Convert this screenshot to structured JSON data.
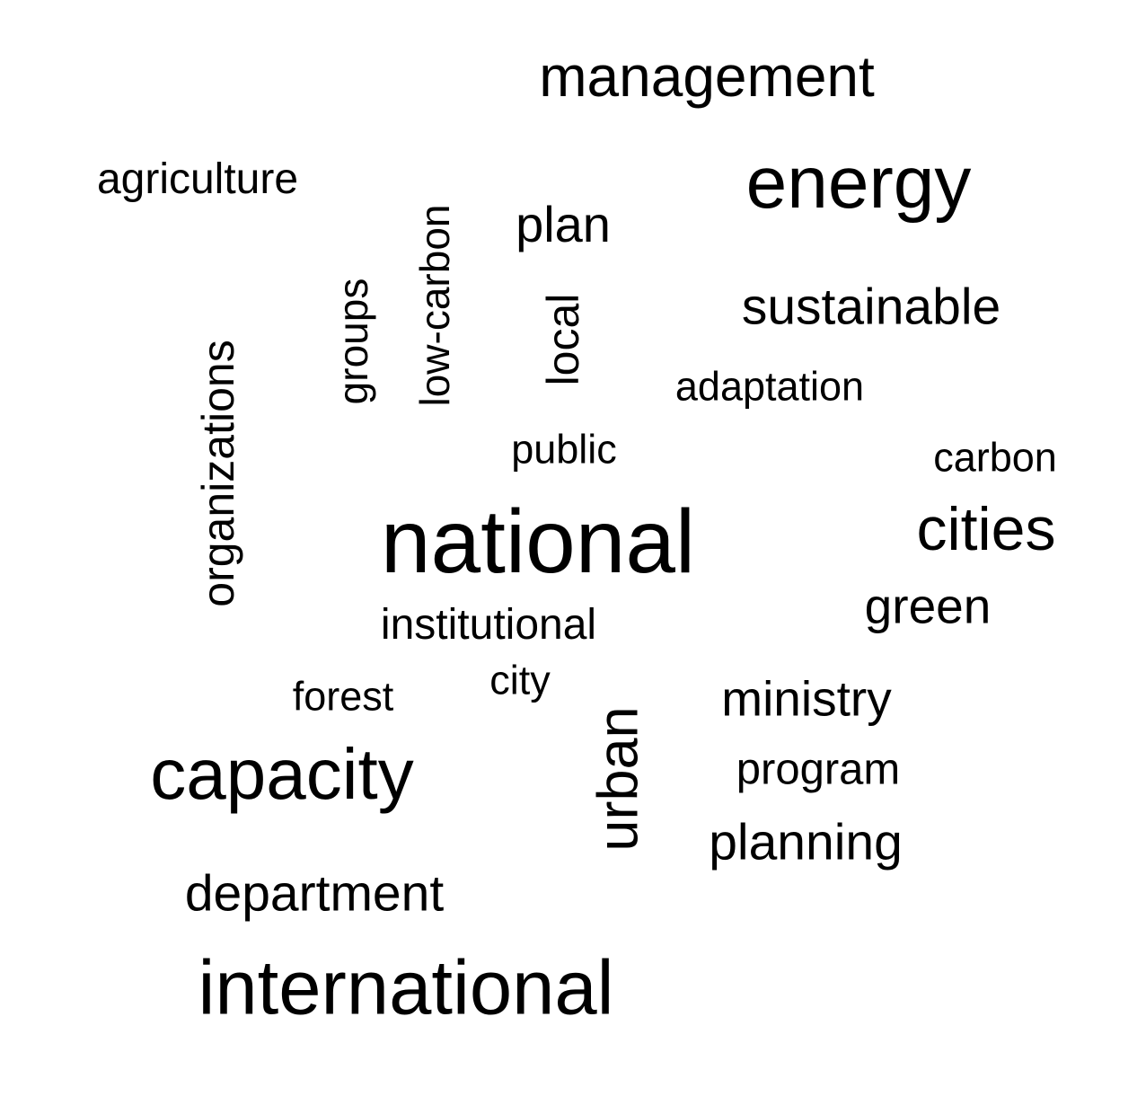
{
  "words": {
    "management": "management",
    "energy": "energy",
    "agriculture": "agriculture",
    "plan": "plan",
    "sustainable": "sustainable",
    "adaptation": "adaptation",
    "public": "public",
    "carbon": "carbon",
    "national": "national",
    "cities": "cities",
    "green": "green",
    "institutional": "institutional",
    "city": "city",
    "forest": "forest",
    "ministry": "ministry",
    "capacity": "capacity",
    "program": "program",
    "planning": "planning",
    "department": "department",
    "international": "international",
    "organizations": "organizations",
    "groups": "groups",
    "low_carbon": "low-carbon",
    "local": "local",
    "urban": "urban"
  },
  "colors": {
    "text": "#000000",
    "background": "#ffffff"
  }
}
